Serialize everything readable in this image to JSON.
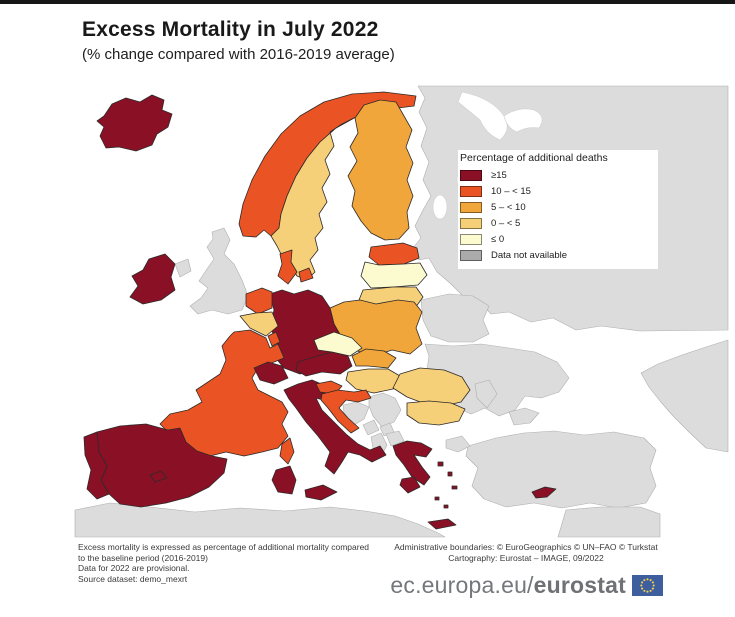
{
  "header": {
    "title": "Excess Mortality in July 2022",
    "subtitle": "(% change compared with 2016-2019 average)"
  },
  "legend": {
    "title": "Percentage of additional deaths",
    "items": [
      {
        "key": "gte15",
        "label": "≥15",
        "color": "#8A1026"
      },
      {
        "key": "r10to15",
        "label": "10 – < 15",
        "color": "#EA5424"
      },
      {
        "key": "r5to10",
        "label": "5 – < 10",
        "color": "#F0A63B"
      },
      {
        "key": "r0to5",
        "label": "0 – < 5",
        "color": "#F6CF79"
      },
      {
        "key": "lte0",
        "label": "≤ 0",
        "color": "#FCFBCF"
      },
      {
        "key": "na",
        "label": "Data not available",
        "color": "#ABABAB"
      }
    ]
  },
  "map": {
    "sea_color": "#ffffff",
    "no_data_fill": "#DCDCDC",
    "no_data_border": "#AFAFAF",
    "border_color": "#2E2A28",
    "countries": [
      {
        "id": "iceland",
        "category": "gte15"
      },
      {
        "id": "norway",
        "category": "r10to15"
      },
      {
        "id": "sweden",
        "category": "r0to5"
      },
      {
        "id": "finland",
        "category": "r5to10"
      },
      {
        "id": "estonia",
        "category": "r10to15"
      },
      {
        "id": "latvia",
        "category": "lte0"
      },
      {
        "id": "lithuania",
        "category": "r0to5"
      },
      {
        "id": "kaliningrad",
        "category": "na"
      },
      {
        "id": "russia",
        "category": "na"
      },
      {
        "id": "russia-caucasus",
        "category": "na"
      },
      {
        "id": "belarus",
        "category": "na"
      },
      {
        "id": "ukraine",
        "category": "na"
      },
      {
        "id": "crimea",
        "category": "na"
      },
      {
        "id": "moldova",
        "category": "na"
      },
      {
        "id": "poland",
        "category": "r5to10"
      },
      {
        "id": "germany",
        "category": "gte15"
      },
      {
        "id": "denmark",
        "category": "r10to15"
      },
      {
        "id": "denmark-islands",
        "category": "r10to15"
      },
      {
        "id": "netherlands",
        "category": "r10to15"
      },
      {
        "id": "belgium",
        "category": "r0to5"
      },
      {
        "id": "luxembourg",
        "category": "r10to15"
      },
      {
        "id": "france",
        "category": "r10to15"
      },
      {
        "id": "corsica",
        "category": "r10to15"
      },
      {
        "id": "sardinia",
        "category": "gte15"
      },
      {
        "id": "uk",
        "category": "na"
      },
      {
        "id": "northern-ireland",
        "category": "na"
      },
      {
        "id": "ireland",
        "category": "gte15"
      },
      {
        "id": "spain",
        "category": "gte15"
      },
      {
        "id": "portugal",
        "category": "gte15"
      },
      {
        "id": "balearic-islands",
        "category": "gte15"
      },
      {
        "id": "italy",
        "category": "gte15"
      },
      {
        "id": "sicily",
        "category": "gte15"
      },
      {
        "id": "switzerland",
        "category": "gte15"
      },
      {
        "id": "austria",
        "category": "gte15"
      },
      {
        "id": "czechia",
        "category": "lte0"
      },
      {
        "id": "slovakia",
        "category": "r5to10"
      },
      {
        "id": "hungary",
        "category": "r0to5"
      },
      {
        "id": "slovenia",
        "category": "r10to15"
      },
      {
        "id": "croatia",
        "category": "r10to15"
      },
      {
        "id": "bosnia-herzegovina",
        "category": "na"
      },
      {
        "id": "serbia",
        "category": "na"
      },
      {
        "id": "montenegro",
        "category": "na"
      },
      {
        "id": "kosovo",
        "category": "na"
      },
      {
        "id": "albania",
        "category": "na"
      },
      {
        "id": "north-macedonia",
        "category": "na"
      },
      {
        "id": "romania",
        "category": "r0to5"
      },
      {
        "id": "bulgaria",
        "category": "r0to5"
      },
      {
        "id": "greece",
        "category": "gte15"
      },
      {
        "id": "peloponnese",
        "category": "gte15"
      },
      {
        "id": "crete",
        "category": "gte15"
      },
      {
        "id": "greek-islands",
        "category": "gte15"
      },
      {
        "id": "cyprus",
        "category": "gte15"
      },
      {
        "id": "turkey",
        "category": "na"
      },
      {
        "id": "turkey-thrace",
        "category": "na"
      },
      {
        "id": "north-africa",
        "category": "na"
      },
      {
        "id": "middle-east",
        "category": "na"
      }
    ]
  },
  "footnotes": {
    "left": [
      "Excess mortality is expressed as percentage of additional mortality compared",
      "to the baseline period (2016-2019)",
      "Data for 2022 are provisional.",
      "Source dataset: demo_mexrt"
    ],
    "right": [
      "Administrative boundaries: © EuroGeographics © UN–FAO © Turkstat",
      "Cartography: Eurostat – IMAGE, 09/2022"
    ]
  },
  "branding": {
    "url_regular": "ec.europa.eu/",
    "url_bold": "eurostat",
    "flag_blue": "#3F5E9E",
    "flag_star": "#F6D44A"
  }
}
